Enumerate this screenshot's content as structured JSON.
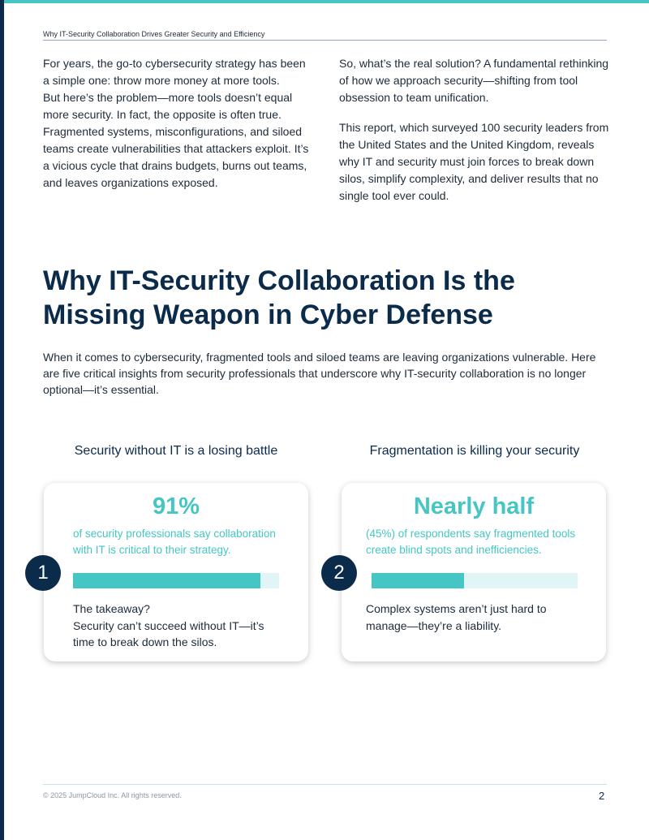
{
  "header": {
    "running_title": "Why IT-Security Collaboration Drives Greater Security and Efficiency"
  },
  "intro": {
    "left_lines": [
      "For years, the go-to cybersecurity strategy has been",
      "a simple one: throw more money at more tools.",
      "But here’s the problem—more tools doesn’t equal",
      "more security. In fact, the opposite is often true.",
      "Fragmented systems, misconfigurations, and siloed",
      "teams create vulnerabilities that attackers exploit. It’s",
      "a vicious cycle that drains budgets, burns out teams,",
      "and leaves organizations exposed."
    ],
    "right_p1_lines": [
      "So, what’s the real solution? A fundamental rethinking",
      "of how we approach security—shifting from tool",
      "obsession to team unification."
    ],
    "right_p2_lines": [
      "This report, which surveyed 100 security leaders from",
      "the United States and the United Kingdom, reveals",
      "why IT and security must join forces to break down",
      "silos, simplify complexity, and deliver results that no",
      "single tool ever could."
    ]
  },
  "section": {
    "title_lines": [
      "Why IT-Security Collaboration Is the",
      "Missing Weapon in Cyber Defense"
    ],
    "body_lines": [
      "When it comes to cybersecurity, fragmented tools and siloed teams are leaving organizations vulnerable. Here",
      "are five critical insights from security professionals that underscore why IT-security collaboration is no longer",
      "optional—it’s essential."
    ]
  },
  "cards": [
    {
      "heading": "Security without IT is a losing battle",
      "number": "1",
      "stat": "91%",
      "stat_lines": [
        "of security professionals say collaboration",
        "with IT is critical to their strategy."
      ],
      "bar_value": 91,
      "takeaway_lines": [
        "The takeaway?",
        "Security can’t succeed without IT—it’s",
        "time to break down the silos."
      ]
    },
    {
      "heading": "Fragmentation is killing your security",
      "number": "2",
      "stat": "Nearly half",
      "stat_lines": [
        "(45%) of respondents say fragmented tools",
        "create blind spots and inefficiencies."
      ],
      "bar_value": 45,
      "takeaway_lines": [
        "Complex systems aren’t just hard to",
        "manage—they’re a liability."
      ]
    }
  ],
  "footer": {
    "copyright": "© 2025  JumpCloud Inc. All rights reserved.",
    "page": "2"
  }
}
